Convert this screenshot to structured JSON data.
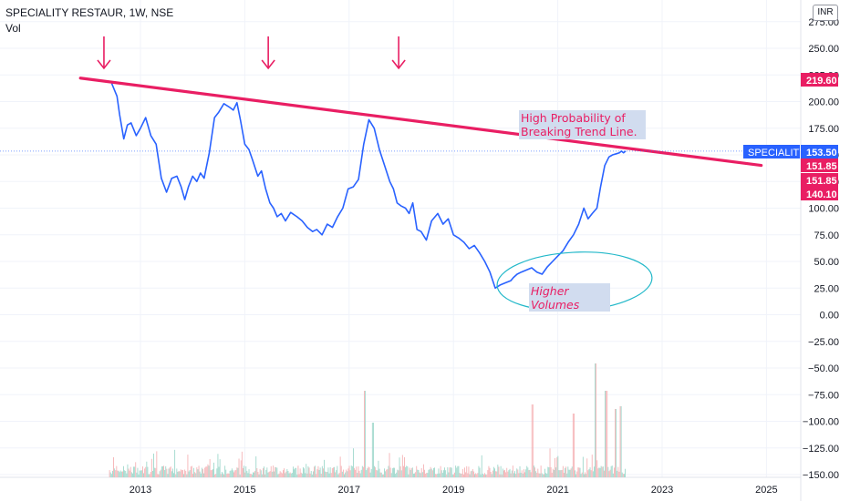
{
  "legend": {
    "symbol_line": "SPECIALITY RESTAUR, 1W, NSE",
    "volume_label": "Vol"
  },
  "currency_button": "INR",
  "price_tags": [
    {
      "label": "219.60",
      "value": 219.6,
      "color": "#e91e63"
    },
    {
      "label": "151.85",
      "value": 151.85,
      "color": "#e91e63"
    },
    {
      "label": "151.85",
      "value": 151.85,
      "color": "#e91e63"
    },
    {
      "label": "140.10",
      "value": 140.1,
      "color": "#e91e63"
    }
  ],
  "symbol_tag": {
    "name": "SPECIALITY",
    "price": "153.50",
    "value": 153.5,
    "color": "#2962ff"
  },
  "annotations": {
    "trend_note": [
      "High Probability of",
      "Breaking Trend Line."
    ],
    "volume_note": [
      "Higher",
      "Volumes"
    ]
  },
  "colors": {
    "price_line": "#2962ff",
    "trend_line": "#e91e63",
    "ellipse": "#22b8c9",
    "vol_up": "#9fd8cc",
    "vol_down": "#f5b3b6",
    "grid": "#f0f3fa"
  },
  "chart_data": {
    "type": "line",
    "title": "SPECIALITY RESTAUR, 1W, NSE",
    "xlabel": "",
    "ylabel": "",
    "x_ticks": [
      "2013",
      "2015",
      "2017",
      "2019",
      "2021",
      "2023",
      "2025"
    ],
    "y_ticks": [
      "275.00",
      "250.00",
      "225.00",
      "200.00",
      "175.00",
      "150.00",
      "125.00",
      "100.00",
      "75.00",
      "50.00",
      "25.00",
      "0.00",
      "−25.00",
      "−50.00",
      "−75.00",
      "−100.00",
      "−125.00",
      "−150.00"
    ],
    "xlim": [
      2011.6,
      2025.4
    ],
    "ylim": [
      -155,
      285
    ],
    "series": [
      {
        "values_x": [
          2012.45,
          2012.55,
          2012.6,
          2012.68,
          2012.75,
          2012.82,
          2012.92,
          2013.0,
          2013.1,
          2013.2,
          2013.3,
          2013.4,
          2013.5,
          2013.6,
          2013.7,
          2013.78,
          2013.85,
          2013.92,
          2014.0,
          2014.08,
          2014.15,
          2014.22,
          2014.32,
          2014.42,
          2014.5,
          2014.6,
          2014.7,
          2014.78,
          2014.85,
          2014.92,
          2015.0,
          2015.08,
          2015.15,
          2015.25,
          2015.32,
          2015.4,
          2015.48,
          2015.55,
          2015.62,
          2015.7,
          2015.78,
          2015.88,
          2016.0,
          2016.1,
          2016.2,
          2016.3,
          2016.38,
          2016.48,
          2016.58,
          2016.68,
          2016.78,
          2016.88,
          2016.98,
          2017.08,
          2017.18,
          2017.28,
          2017.38,
          2017.48,
          2017.58,
          2017.68,
          2017.78,
          2017.85,
          2017.92,
          2018.0,
          2018.08,
          2018.15,
          2018.22,
          2018.3,
          2018.38,
          2018.48,
          2018.58,
          2018.7,
          2018.8,
          2018.9,
          2019.0,
          2019.1,
          2019.2,
          2019.3,
          2019.4,
          2019.5,
          2019.6,
          2019.7,
          2019.8,
          2019.9,
          2020.0,
          2020.1,
          2020.15,
          2020.22,
          2020.3,
          2020.4,
          2020.5,
          2020.6,
          2020.7,
          2020.8,
          2020.9,
          2021.0,
          2021.1,
          2021.2,
          2021.3,
          2021.4,
          2021.5,
          2021.58,
          2021.66,
          2021.75,
          2021.82,
          2021.9,
          2021.98,
          2022.05,
          2022.12,
          2022.18,
          2022.22,
          2022.26,
          2022.3
        ],
        "values_y": [
          217,
          205,
          188,
          165,
          178,
          180,
          168,
          175,
          185,
          168,
          160,
          128,
          115,
          128,
          130,
          120,
          108,
          120,
          130,
          125,
          133,
          128,
          152,
          185,
          190,
          198,
          195,
          192,
          199,
          182,
          160,
          155,
          145,
          130,
          135,
          118,
          105,
          100,
          92,
          95,
          88,
          96,
          92,
          88,
          82,
          78,
          80,
          75,
          85,
          82,
          92,
          100,
          118,
          120,
          127,
          160,
          183,
          175,
          155,
          140,
          125,
          118,
          105,
          102,
          100,
          95,
          105,
          80,
          78,
          70,
          88,
          95,
          85,
          90,
          75,
          72,
          68,
          62,
          65,
          58,
          50,
          40,
          25,
          28,
          30,
          32,
          35,
          38,
          40,
          42,
          44,
          40,
          38,
          45,
          50,
          55,
          60,
          68,
          75,
          85,
          100,
          90,
          95,
          100,
          120,
          140,
          148,
          150,
          151,
          152,
          153.5,
          151.85,
          153.5
        ]
      }
    ],
    "trend_line": {
      "x": [
        2011.85,
        2024.9
      ],
      "y": [
        222,
        140.1
      ]
    },
    "volume": {
      "axis_offset": -150,
      "bars_per_year": 52,
      "start": 2012.4,
      "end": 2022.3
    }
  }
}
